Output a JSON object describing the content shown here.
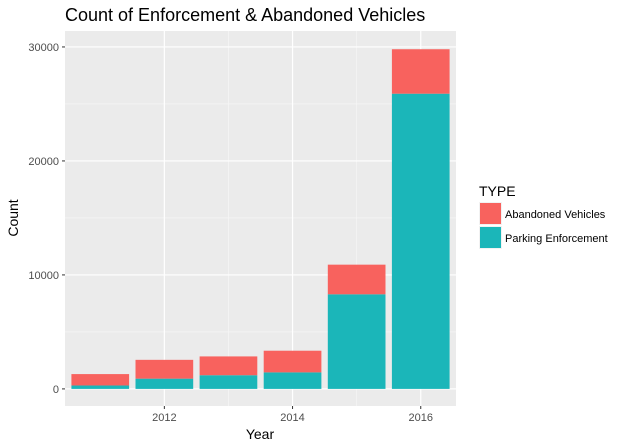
{
  "chart_data": {
    "type": "bar",
    "stacked": true,
    "title": "Count of Enforcement & Abandoned Vehicles",
    "xlabel": "Year",
    "ylabel": "Count",
    "x": [
      2011,
      2012,
      2013,
      2014,
      2015,
      2016
    ],
    "x_ticks": [
      "2012",
      "2014",
      "2016"
    ],
    "x_tick_values": [
      2012,
      2014,
      2016
    ],
    "y_ticks": [
      "0",
      "10000",
      "20000",
      "30000"
    ],
    "y_tick_values": [
      0,
      10000,
      20000,
      30000
    ],
    "ylim": [
      -1500,
      31400
    ],
    "xlim": [
      2010.45,
      2016.55
    ],
    "grid": true,
    "legend": {
      "title": "TYPE",
      "placement": "right"
    },
    "series": [
      {
        "name": "Parking Enforcement",
        "color": "#1bb6b9",
        "values": [
          300,
          900,
          1200,
          1450,
          8300,
          25900
        ]
      },
      {
        "name": "Abandoned Vehicles",
        "color": "#f8625e",
        "values": [
          1000,
          1650,
          1650,
          1900,
          2600,
          3900
        ]
      }
    ],
    "legend_order": [
      "Abandoned Vehicles",
      "Parking Enforcement"
    ]
  }
}
